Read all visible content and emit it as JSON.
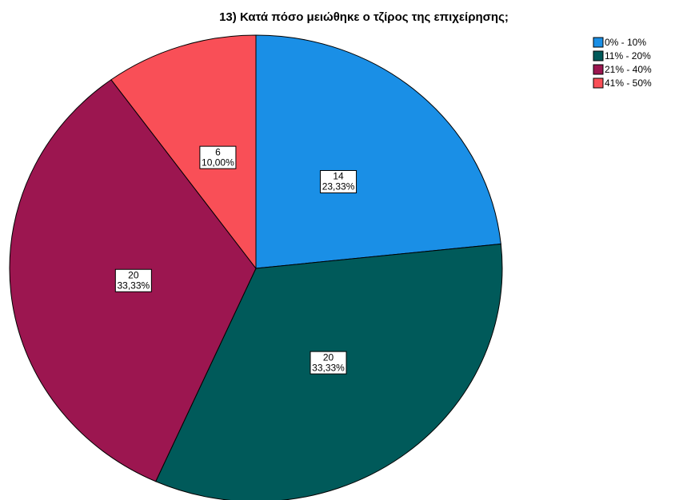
{
  "chart_data": {
    "type": "pie",
    "title": "13) Κατά πόσο μειώθηκε ο τζίρος της επιχείρησης;",
    "categories": [
      "0% - 10%",
      "11% - 20%",
      "21% - 40%",
      "41% - 50%"
    ],
    "values": [
      14,
      20,
      20,
      6
    ],
    "percent_labels": [
      "23,33%",
      "33,33%",
      "33,33%",
      "10,00%"
    ],
    "colors": [
      "#1a8fe6",
      "#005a5a",
      "#9c1650",
      "#f94f57"
    ],
    "legend": "top-right"
  }
}
